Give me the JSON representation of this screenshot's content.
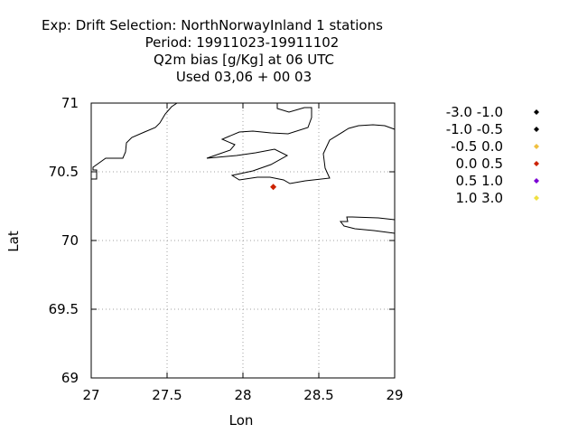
{
  "title_lines": [
    "Exp: Drift   Selection: NorthNorwayInland       1 stations",
    "Period: 19911023-19911102",
    "Q2m bias [g/Kg] at  06 UTC",
    "Used  03,06 + 00 03"
  ],
  "chart_data": {
    "type": "scatter",
    "xlabel": "Lon",
    "ylabel": "Lat",
    "xlim": [
      27,
      29
    ],
    "ylim": [
      69,
      71
    ],
    "xticks": [
      "27",
      "27.5",
      "28",
      "28.5",
      "29"
    ],
    "yticks": [
      "69",
      "69.5",
      "70",
      "70.5",
      "71"
    ],
    "grid": true,
    "legend_position": "right",
    "legend": [
      {
        "label": "-3.0 -1.0",
        "color": "#000000"
      },
      {
        "label": "-1.0 -0.5",
        "color": "#000000"
      },
      {
        "label": "-0.5 0.0",
        "color": "#f0c040"
      },
      {
        "label": "0.0 0.5",
        "color": "#cc2200"
      },
      {
        "label": "0.5 1.0",
        "color": "#7b00d4"
      },
      {
        "label": "1.0 3.0",
        "color": "#f0e040"
      }
    ],
    "points": [
      {
        "lon": 28.2,
        "lat": 70.39,
        "bin": "0.0 0.5",
        "color": "#cc2200"
      }
    ]
  }
}
